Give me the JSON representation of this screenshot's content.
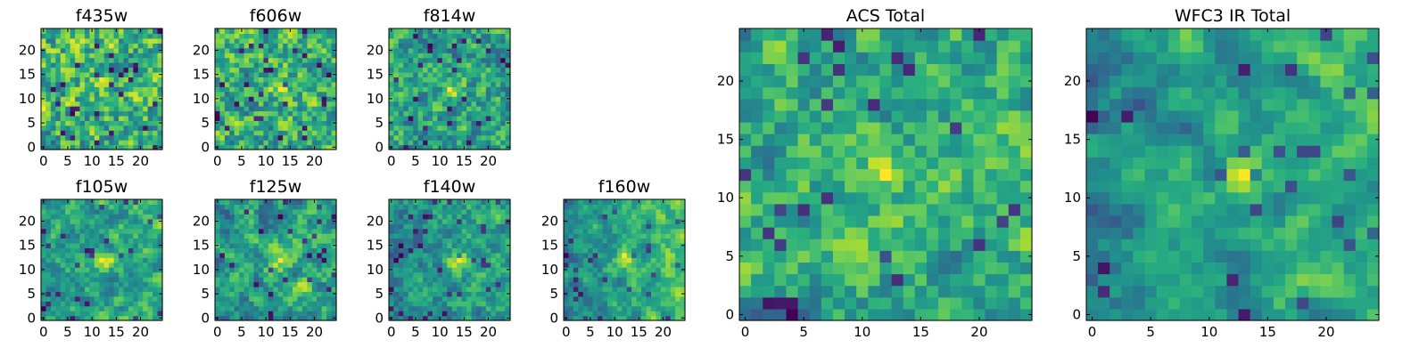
{
  "chart_data": [
    {
      "type": "heatmap",
      "title": "f435w",
      "nx": 25,
      "ny": 25,
      "xticks": [
        "0",
        "5",
        "10",
        "15",
        "20"
      ],
      "yticks": [
        "0",
        "5",
        "10",
        "15",
        "20"
      ],
      "hotspot": [
        12,
        13
      ],
      "hotspot_strength": 0.15,
      "noise": 0.55,
      "right_gradient": 0.0,
      "seed": 11,
      "colormap": "viridis"
    },
    {
      "type": "heatmap",
      "title": "f606w",
      "nx": 25,
      "ny": 25,
      "xticks": [
        "0",
        "5",
        "10",
        "15",
        "20"
      ],
      "yticks": [
        "0",
        "5",
        "10",
        "15",
        "20"
      ],
      "hotspot": [
        13,
        12
      ],
      "hotspot_strength": 0.35,
      "noise": 0.45,
      "right_gradient": 0.0,
      "seed": 23,
      "colormap": "viridis"
    },
    {
      "type": "heatmap",
      "title": "f814w",
      "nx": 25,
      "ny": 25,
      "xticks": [
        "0",
        "5",
        "10",
        "15",
        "20"
      ],
      "yticks": [
        "0",
        "5",
        "10",
        "15",
        "20"
      ],
      "hotspot": [
        13,
        12
      ],
      "hotspot_strength": 0.45,
      "noise": 0.45,
      "right_gradient": 0.0,
      "seed": 37,
      "colormap": "viridis"
    },
    {
      "type": "heatmap",
      "title": "f105w",
      "nx": 25,
      "ny": 25,
      "xticks": [
        "0",
        "5",
        "10",
        "15",
        "20"
      ],
      "yticks": [
        "0",
        "5",
        "10",
        "15",
        "20"
      ],
      "hotspot": [
        13,
        12
      ],
      "hotspot_strength": 0.55,
      "noise": 0.3,
      "right_gradient": 0.1,
      "seed": 41,
      "colormap": "viridis"
    },
    {
      "type": "heatmap",
      "title": "f125w",
      "nx": 25,
      "ny": 25,
      "xticks": [
        "0",
        "5",
        "10",
        "15",
        "20"
      ],
      "yticks": [
        "0",
        "5",
        "10",
        "15",
        "20"
      ],
      "hotspot": [
        13,
        12
      ],
      "hotspot_strength": 0.45,
      "noise": 0.3,
      "right_gradient": 0.35,
      "seed": 53,
      "colormap": "viridis"
    },
    {
      "type": "heatmap",
      "title": "f140w",
      "nx": 25,
      "ny": 25,
      "xticks": [
        "0",
        "5",
        "10",
        "15",
        "20"
      ],
      "yticks": [
        "0",
        "5",
        "10",
        "15",
        "20"
      ],
      "hotspot": [
        14,
        12
      ],
      "hotspot_strength": 0.55,
      "noise": 0.35,
      "right_gradient": 0.3,
      "seed": 67,
      "colormap": "viridis"
    },
    {
      "type": "heatmap",
      "title": "f160w",
      "nx": 25,
      "ny": 25,
      "xticks": [
        "0",
        "5",
        "10",
        "15",
        "20"
      ],
      "yticks": [
        "0",
        "5",
        "10",
        "15",
        "20"
      ],
      "hotspot": [
        12,
        12
      ],
      "hotspot_strength": 0.55,
      "noise": 0.3,
      "right_gradient": 0.55,
      "seed": 79,
      "colormap": "viridis"
    },
    {
      "type": "heatmap",
      "title": "ACS Total",
      "nx": 25,
      "ny": 25,
      "xticks": [
        "0",
        "5",
        "10",
        "15",
        "20"
      ],
      "yticks": [
        "0",
        "5",
        "10",
        "15",
        "20"
      ],
      "hotspot": [
        12,
        12
      ],
      "hotspot_strength": 0.35,
      "noise": 0.35,
      "right_gradient": 0.0,
      "seed": 97,
      "colormap": "viridis"
    },
    {
      "type": "heatmap",
      "title": "WFC3 IR Total",
      "nx": 25,
      "ny": 25,
      "xticks": [
        "0",
        "5",
        "10",
        "15",
        "20"
      ],
      "yticks": [
        "0",
        "5",
        "10",
        "15",
        "20"
      ],
      "hotspot": [
        13,
        12
      ],
      "hotspot_strength": 0.55,
      "noise": 0.2,
      "right_gradient": 0.45,
      "seed": 101,
      "colormap": "viridis"
    }
  ]
}
